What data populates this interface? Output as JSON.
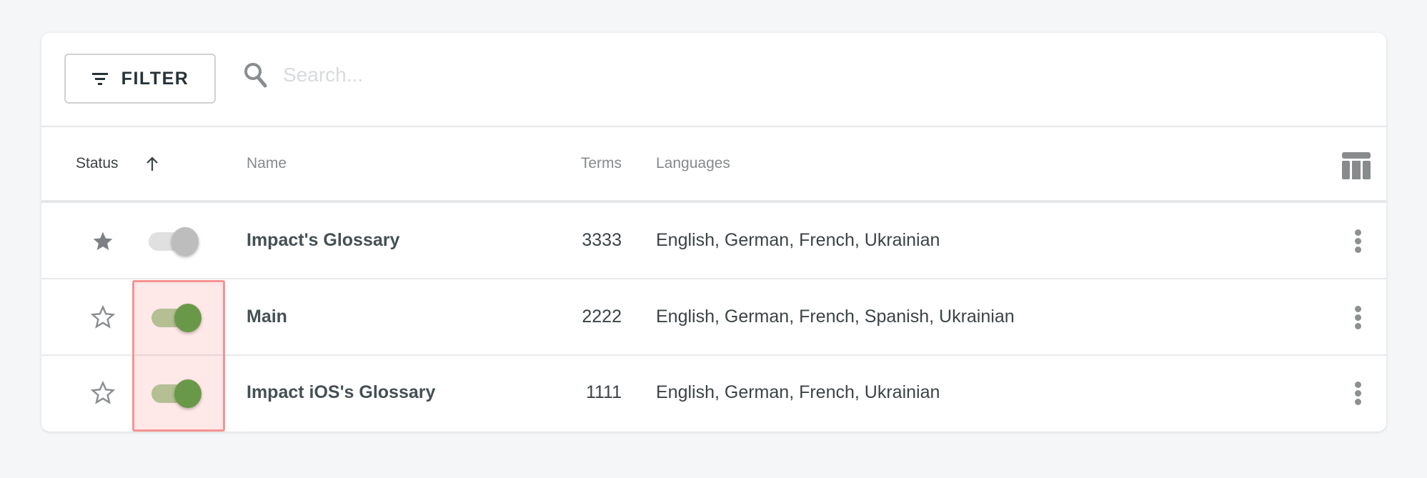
{
  "toolbar": {
    "filter_label": "FILTER",
    "search_placeholder": "Search...",
    "search_value": ""
  },
  "table": {
    "columns": {
      "status": "Status",
      "name": "Name",
      "terms": "Terms",
      "languages": "Languages"
    },
    "sort": {
      "column": "status",
      "direction": "ascending"
    },
    "rows": [
      {
        "starred": true,
        "enabled": false,
        "name": "Impact's Glossary",
        "terms": "3333",
        "languages": "English, German, French, Ukrainian"
      },
      {
        "starred": false,
        "enabled": true,
        "name": "Main",
        "terms": "2222",
        "languages": "English, German, French, Spanish, Ukrainian"
      },
      {
        "starred": false,
        "enabled": true,
        "name": "Impact iOS's Glossary",
        "terms": "1111",
        "languages": "English, German, French, Ukrainian"
      }
    ]
  },
  "colors": {
    "toggle_on": "#53a548",
    "toggle_on_track": "#a9d09f",
    "toggle_off": "#bdbdbd",
    "toggle_off_track": "#e0e0e0",
    "highlight_border": "#f59393"
  }
}
